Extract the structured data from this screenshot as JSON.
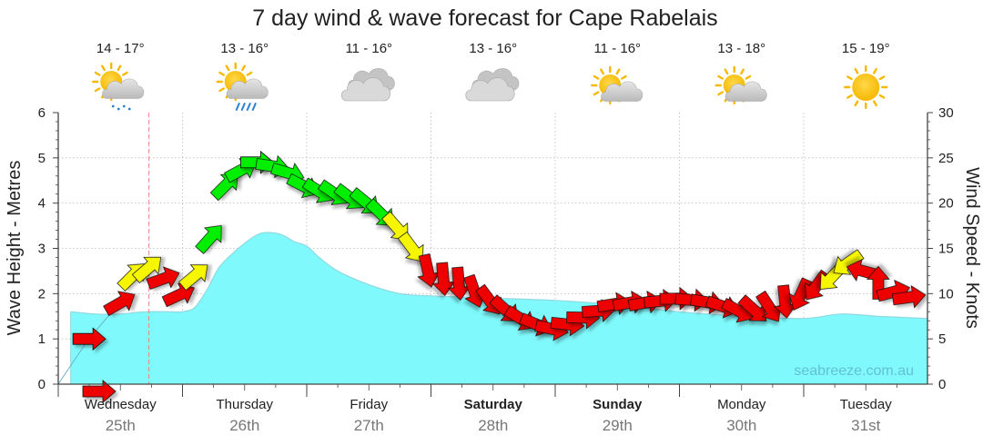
{
  "chart_data": {
    "type": "forecast",
    "title": "7 day wind & wave forecast for Cape Rabelais",
    "ylabel_left": "Wave Height - Metres",
    "ylabel_right": "Wind Speed - Knots",
    "ylim_left": [
      0,
      6
    ],
    "ylim_right": [
      0,
      30
    ],
    "yticks_left": [
      "0",
      "1",
      "2",
      "3",
      "4",
      "5",
      "6"
    ],
    "yticks_right": [
      "0",
      "5",
      "10",
      "15",
      "20",
      "25",
      "30"
    ],
    "watermark": "seabreeze.com.au",
    "days": [
      {
        "name": "Wednesday",
        "date": "25th",
        "temps": "14 - 17°",
        "weather": "showers",
        "bold": false
      },
      {
        "name": "Thursday",
        "date": "26th",
        "temps": "13 - 16°",
        "weather": "rain",
        "bold": false
      },
      {
        "name": "Friday",
        "date": "27th",
        "temps": "11 - 16°",
        "weather": "cloudy",
        "bold": false
      },
      {
        "name": "Saturday",
        "date": "28th",
        "temps": "13 - 16°",
        "weather": "cloudy",
        "bold": true
      },
      {
        "name": "Sunday",
        "date": "29th",
        "temps": "11 - 16°",
        "weather": "partly-cloudy",
        "bold": true
      },
      {
        "name": "Monday",
        "date": "30th",
        "temps": "13 - 18°",
        "weather": "partly-cloudy",
        "bold": false
      },
      {
        "name": "Tuesday",
        "date": "31st",
        "temps": "15 - 19°",
        "weather": "sunny",
        "bold": false
      }
    ],
    "now_day": 0.73,
    "wave_series": {
      "name": "Wave Height",
      "units": "m",
      "day": [
        0.0,
        0.1,
        0.3,
        0.5,
        0.7,
        0.9,
        1.0,
        1.1,
        1.2,
        1.3,
        1.45,
        1.6,
        1.7,
        1.8,
        1.9,
        2.0,
        2.1,
        2.25,
        2.5,
        2.75,
        3.0,
        3.5,
        4.0,
        4.5,
        5.0,
        5.5,
        6.0,
        6.3,
        6.6,
        7.0
      ],
      "values": [
        0.0,
        1.6,
        1.55,
        1.55,
        1.6,
        1.6,
        1.6,
        1.7,
        2.1,
        2.6,
        3.0,
        3.3,
        3.35,
        3.3,
        3.15,
        3.05,
        2.8,
        2.5,
        2.2,
        2.0,
        1.95,
        1.9,
        1.85,
        1.75,
        1.6,
        1.5,
        1.45,
        1.55,
        1.5,
        1.45
      ]
    },
    "wind_series": {
      "name": "Wind Speed",
      "units": "knots",
      "arrow_heading_meaning": "direction wind blows toward",
      "day": [
        0.0,
        0.25,
        0.5,
        0.6,
        0.75,
        0.9,
        1.0,
        1.1,
        1.25,
        1.35,
        1.5,
        1.6,
        1.75,
        1.9,
        2.0,
        2.25,
        2.5,
        2.75,
        2.9,
        3.0,
        3.25,
        3.5,
        3.75,
        4.0,
        4.25,
        4.5,
        4.75,
        5.0,
        5.25,
        5.5,
        5.75,
        6.0,
        6.25,
        6.4,
        6.5,
        6.75,
        7.0
      ],
      "speed": [
        0.0,
        5.0,
        9.0,
        12.0,
        13.0,
        11.0,
        9.5,
        12.0,
        17.0,
        22.0,
        24.0,
        24.5,
        24.0,
        23.0,
        21.5,
        21.0,
        20.0,
        17.0,
        14.0,
        12.0,
        11.0,
        9.0,
        7.0,
        6.0,
        7.5,
        9.0,
        9.0,
        9.5,
        9.0,
        8.0,
        8.5,
        10.0,
        12.0,
        14.0,
        12.0,
        10.0,
        9.0
      ],
      "heading_deg": [
        90,
        90,
        60,
        45,
        50,
        80,
        60,
        50,
        40,
        45,
        65,
        90,
        100,
        110,
        120,
        125,
        130,
        140,
        145,
        175,
        175,
        140,
        120,
        100,
        90,
        80,
        80,
        90,
        100,
        120,
        150,
        210,
        225,
        240,
        300,
        90,
        70
      ],
      "band": [
        "red",
        "red",
        "red",
        "yellow",
        "yellow",
        "red",
        "red",
        "yellow",
        "green",
        "green",
        "green",
        "green",
        "green",
        "green",
        "green",
        "green",
        "green",
        "yellow",
        "yellow",
        "red",
        "red",
        "red",
        "red",
        "red",
        "red",
        "red",
        "red",
        "red",
        "red",
        "red",
        "red",
        "red",
        "yellow",
        "yellow",
        "red",
        "red",
        "red"
      ]
    },
    "colors": {
      "wave_fill": "#7ff9fb",
      "wave_line": "#8fd9e2",
      "wind_red": "#ee0000",
      "wind_yellow": "#f6f600",
      "wind_green": "#00ee00",
      "grid": "#bbbbbb",
      "now_line": "#f08080",
      "text": "#333333",
      "date_text": "#777777"
    }
  }
}
